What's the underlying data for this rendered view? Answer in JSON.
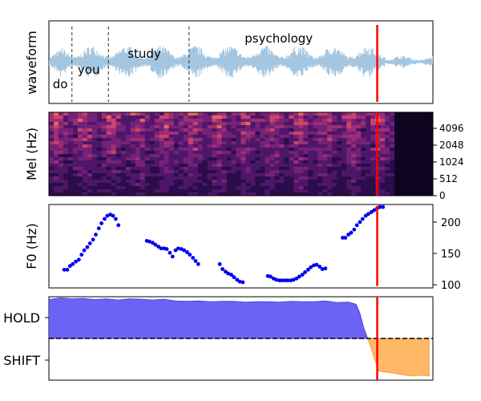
{
  "colors": {
    "waveform": "#a4c6e0",
    "cursor": "#ff0000",
    "f0_points": "#0000ee",
    "hold_fill": "#6b63f6",
    "hold_edge": "#4a44e0",
    "shift_fill": "#ffb866",
    "shift_edge": "#f0a030",
    "word_marker": "#333333"
  },
  "chart_data": [
    {
      "type": "line",
      "panel": "waveform",
      "ylabel": "waveform",
      "xlim": [
        0,
        1
      ],
      "words": [
        {
          "text": "do",
          "x": 0.01
        },
        {
          "text": "you",
          "x": 0.075
        },
        {
          "text": "study",
          "x": 0.205
        },
        {
          "text": "psychology",
          "x": 0.51
        }
      ],
      "word_boundaries": [
        0.06,
        0.155,
        0.365
      ],
      "speech_end": 0.875,
      "cursor_x": 0.855
    },
    {
      "type": "heatmap",
      "panel": "mel",
      "ylabel": "Mel (Hz)",
      "y_ticks": [
        "4096",
        "2048",
        "1024",
        "512",
        "0"
      ],
      "xlim": [
        0,
        1
      ],
      "voiced_end": 0.89,
      "cursor_x": 0.855
    },
    {
      "type": "scatter",
      "panel": "f0",
      "ylabel": "F0 (Hz)",
      "ylim": [
        95,
        228
      ],
      "y_ticks": [
        100,
        150,
        200
      ],
      "xlim": [
        0,
        1
      ],
      "cursor_x": 0.855,
      "points": [
        [
          0.04,
          124
        ],
        [
          0.048,
          124
        ],
        [
          0.055,
          130
        ],
        [
          0.062,
          133
        ],
        [
          0.07,
          137
        ],
        [
          0.078,
          140
        ],
        [
          0.085,
          148
        ],
        [
          0.092,
          155
        ],
        [
          0.1,
          160
        ],
        [
          0.107,
          166
        ],
        [
          0.115,
          172
        ],
        [
          0.122,
          180
        ],
        [
          0.13,
          190
        ],
        [
          0.137,
          198
        ],
        [
          0.145,
          205
        ],
        [
          0.152,
          210
        ],
        [
          0.16,
          212
        ],
        [
          0.167,
          210
        ],
        [
          0.174,
          205
        ],
        [
          0.181,
          195
        ],
        [
          0.255,
          170
        ],
        [
          0.262,
          169
        ],
        [
          0.27,
          167
        ],
        [
          0.277,
          164
        ],
        [
          0.285,
          161
        ],
        [
          0.292,
          158
        ],
        [
          0.3,
          158
        ],
        [
          0.307,
          157
        ],
        [
          0.315,
          151
        ],
        [
          0.322,
          145
        ],
        [
          0.33,
          155
        ],
        [
          0.337,
          158
        ],
        [
          0.345,
          157
        ],
        [
          0.352,
          155
        ],
        [
          0.36,
          152
        ],
        [
          0.367,
          148
        ],
        [
          0.375,
          143
        ],
        [
          0.382,
          138
        ],
        [
          0.389,
          133
        ],
        [
          0.445,
          133
        ],
        [
          0.452,
          125
        ],
        [
          0.46,
          121
        ],
        [
          0.467,
          118
        ],
        [
          0.475,
          116
        ],
        [
          0.482,
          112
        ],
        [
          0.49,
          108
        ],
        [
          0.497,
          105
        ],
        [
          0.505,
          104
        ],
        [
          0.57,
          114
        ],
        [
          0.577,
          113
        ],
        [
          0.585,
          110
        ],
        [
          0.592,
          108
        ],
        [
          0.6,
          107
        ],
        [
          0.607,
          107
        ],
        [
          0.615,
          107
        ],
        [
          0.622,
          107
        ],
        [
          0.63,
          107
        ],
        [
          0.637,
          108
        ],
        [
          0.645,
          110
        ],
        [
          0.652,
          113
        ],
        [
          0.66,
          116
        ],
        [
          0.667,
          120
        ],
        [
          0.675,
          124
        ],
        [
          0.682,
          128
        ],
        [
          0.69,
          131
        ],
        [
          0.697,
          132
        ],
        [
          0.705,
          129
        ],
        [
          0.712,
          125
        ],
        [
          0.72,
          126
        ],
        [
          0.765,
          175
        ],
        [
          0.772,
          175
        ],
        [
          0.78,
          180
        ],
        [
          0.787,
          183
        ],
        [
          0.795,
          188
        ],
        [
          0.802,
          195
        ],
        [
          0.81,
          200
        ],
        [
          0.817,
          205
        ],
        [
          0.825,
          210
        ],
        [
          0.832,
          213
        ],
        [
          0.84,
          216
        ],
        [
          0.847,
          219
        ],
        [
          0.855,
          222
        ],
        [
          0.862,
          224
        ],
        [
          0.87,
          224
        ]
      ]
    },
    {
      "type": "area",
      "panel": "turn",
      "y_ticks": [
        "HOLD",
        "SHIFT"
      ],
      "ylim": [
        -1,
        1
      ],
      "xlim": [
        0,
        1
      ],
      "cursor_x": 0.855,
      "series": [
        {
          "role": "hold",
          "x": [
            0,
            0.03,
            0.06,
            0.09,
            0.12,
            0.15,
            0.18,
            0.21,
            0.24,
            0.27,
            0.3,
            0.33,
            0.36,
            0.39,
            0.42,
            0.45,
            0.48,
            0.51,
            0.54,
            0.57,
            0.6,
            0.63,
            0.66,
            0.69,
            0.72,
            0.75,
            0.78,
            0.8,
            0.81,
            0.82,
            0.83
          ],
          "values": [
            0.93,
            0.97,
            0.95,
            0.96,
            0.93,
            0.95,
            0.92,
            0.95,
            0.94,
            0.92,
            0.94,
            0.9,
            0.89,
            0.9,
            0.88,
            0.89,
            0.89,
            0.87,
            0.88,
            0.88,
            0.87,
            0.89,
            0.88,
            0.88,
            0.9,
            0.86,
            0.87,
            0.82,
            0.6,
            0.25,
            0.0
          ]
        },
        {
          "role": "shift",
          "x": [
            0.83,
            0.84,
            0.85,
            0.86,
            0.87,
            0.89,
            0.91,
            0.93,
            0.95,
            0.97,
            0.99
          ],
          "values": [
            0.0,
            -0.25,
            -0.55,
            -0.78,
            -0.8,
            -0.82,
            -0.85,
            -0.88,
            -0.9,
            -0.88,
            -0.9
          ]
        }
      ]
    }
  ]
}
